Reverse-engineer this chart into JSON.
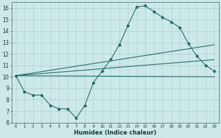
{
  "xlabel": "Humidex (Indice chaleur)",
  "ylabel": "",
  "bg_color": "#cce8e8",
  "line_color": "#1a6e6a",
  "grid_color": "#aacfcf",
  "xlim": [
    -0.5,
    23.5
  ],
  "ylim": [
    6,
    16.5
  ],
  "yticks": [
    6,
    7,
    8,
    9,
    10,
    11,
    12,
    13,
    14,
    15,
    16
  ],
  "xticks": [
    0,
    1,
    2,
    3,
    4,
    5,
    6,
    7,
    8,
    9,
    10,
    11,
    12,
    13,
    14,
    15,
    16,
    17,
    18,
    19,
    20,
    21,
    22,
    23
  ],
  "line1_x": [
    0,
    1,
    2,
    3,
    4,
    5,
    6,
    7,
    8,
    9,
    10,
    11,
    12,
    13,
    14,
    15,
    16,
    17,
    18,
    19,
    20,
    21,
    22,
    23
  ],
  "line1_y": [
    10.1,
    8.7,
    8.4,
    8.4,
    7.5,
    7.2,
    7.2,
    6.4,
    7.5,
    9.5,
    10.5,
    11.5,
    12.8,
    14.5,
    16.1,
    16.2,
    15.7,
    15.2,
    14.8,
    14.3,
    12.9,
    11.8,
    11.0,
    10.5
  ],
  "line2_x": [
    0,
    23
  ],
  "line2_y": [
    10.1,
    12.8
  ],
  "line3_x": [
    0,
    23
  ],
  "line3_y": [
    10.1,
    11.5
  ],
  "line4_x": [
    0,
    23
  ],
  "line4_y": [
    10.1,
    10.0
  ]
}
